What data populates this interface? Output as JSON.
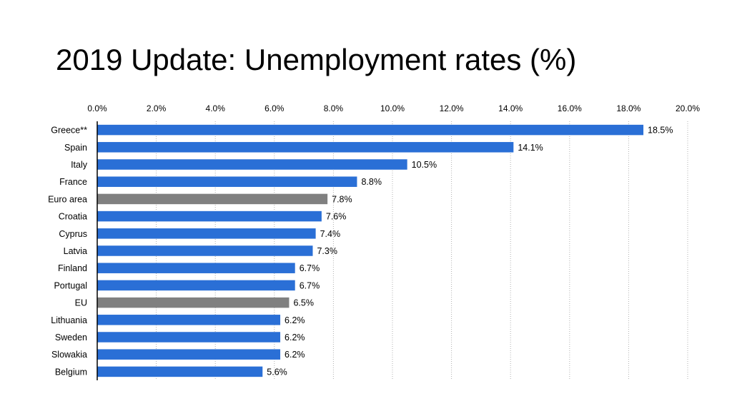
{
  "slide": {
    "title": "2019 Update: Unemployment rates (%)"
  },
  "chart_data": {
    "type": "bar",
    "orientation": "horizontal",
    "title": "2019 Update: Unemployment rates (%)",
    "xlabel": "",
    "ylabel": "",
    "xlim": [
      0,
      20
    ],
    "x_ticks": [
      0,
      2,
      4,
      6,
      8,
      10,
      12,
      14,
      16,
      18,
      20
    ],
    "x_tick_labels": [
      "0.0%",
      "2.0%",
      "4.0%",
      "6.0%",
      "8.0%",
      "10.0%",
      "12.0%",
      "14.0%",
      "16.0%",
      "18.0%",
      "20.0%"
    ],
    "x_axis_position": "top",
    "grid": "vertical dotted",
    "categories": [
      "Greece**",
      "Spain",
      "Italy",
      "France",
      "Euro area",
      "Croatia",
      "Cyprus",
      "Latvia",
      "Finland",
      "Portugal",
      "EU",
      "Lithuania",
      "Sweden",
      "Slowakia",
      "Belgium"
    ],
    "values": [
      18.5,
      14.1,
      10.5,
      8.8,
      7.8,
      7.6,
      7.4,
      7.3,
      6.7,
      6.7,
      6.5,
      6.2,
      6.2,
      6.2,
      5.6
    ],
    "data_labels": [
      "18.5%",
      "14.1%",
      "10.5%",
      "8.8%",
      "7.8%",
      "7.6%",
      "7.4%",
      "7.3%",
      "6.7%",
      "6.7%",
      "6.5%",
      "6.2%",
      "6.2%",
      "6.2%",
      "5.6%"
    ],
    "highlighted": [
      "Euro area",
      "EU"
    ],
    "colors": {
      "bar": "#2a6fd6",
      "highlight": "#808080",
      "axis": "#000000",
      "grid": "#b0b0b0",
      "text": "#000000"
    }
  }
}
